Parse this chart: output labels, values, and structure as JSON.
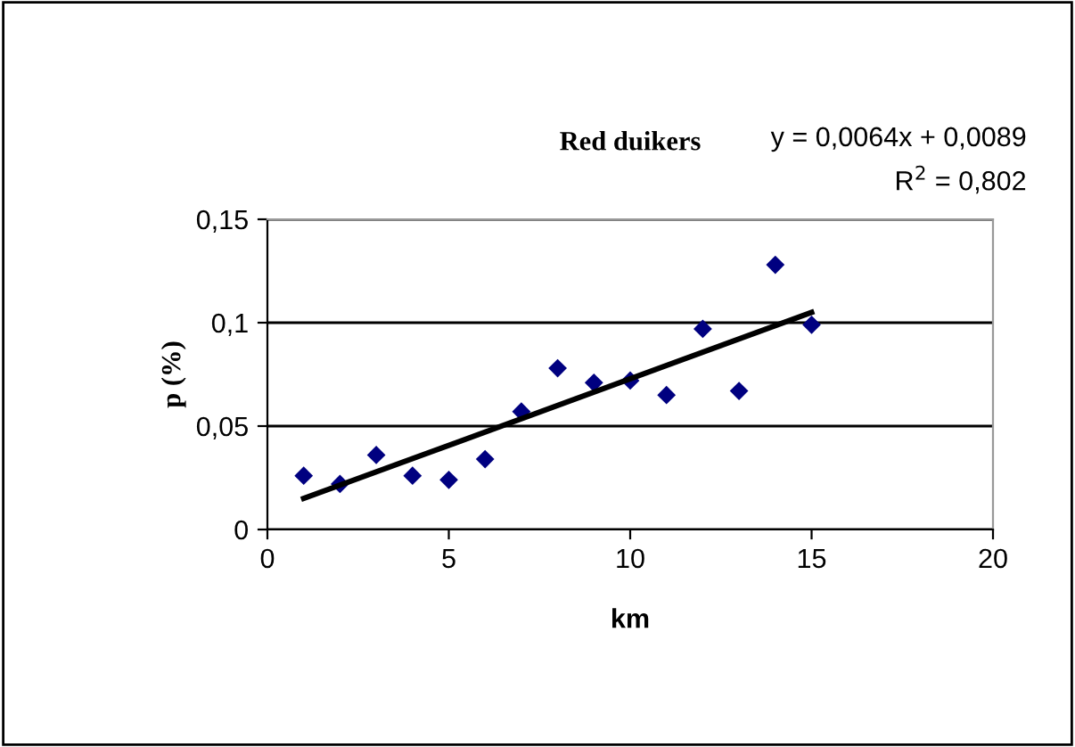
{
  "chart_data": {
    "type": "scatter",
    "title": "Red duikers",
    "xlabel": "km",
    "ylabel": "p (%)",
    "annotations": [
      "y = 0,0064x + 0,0089",
      "R$^{2}$ = 0,802"
    ],
    "x": [
      1,
      2,
      3,
      4,
      5,
      6,
      7,
      8,
      9,
      10,
      11,
      12,
      13,
      14,
      15
    ],
    "series": [
      {
        "color": "#000080",
        "marker": "diamond",
        "values": [
          0.026,
          0.022,
          0.036,
          0.026,
          0.024,
          0.034,
          0.057,
          0.078,
          0.071,
          0.072,
          0.065,
          0.097,
          0.067,
          0.128,
          0.099
        ]
      },
      {
        "type": "line",
        "color": "#000000",
        "line_style": "solid",
        "x": [
          1,
          15
        ],
        "values": [
          0.015,
          0.105
        ]
      }
    ],
    "xlim": [
      0,
      20
    ],
    "xticks": [
      0,
      5,
      10,
      15,
      20
    ],
    "ylim": [
      0,
      0.15
    ],
    "yticks": [
      {
        "value": 0,
        "label": "0"
      },
      {
        "value": 0.05,
        "label": "0,05"
      },
      {
        "value": 0.1,
        "label": "0,1"
      },
      {
        "value": 0.15,
        "label": "0,15"
      }
    ],
    "grid": "y",
    "legend": false
  }
}
